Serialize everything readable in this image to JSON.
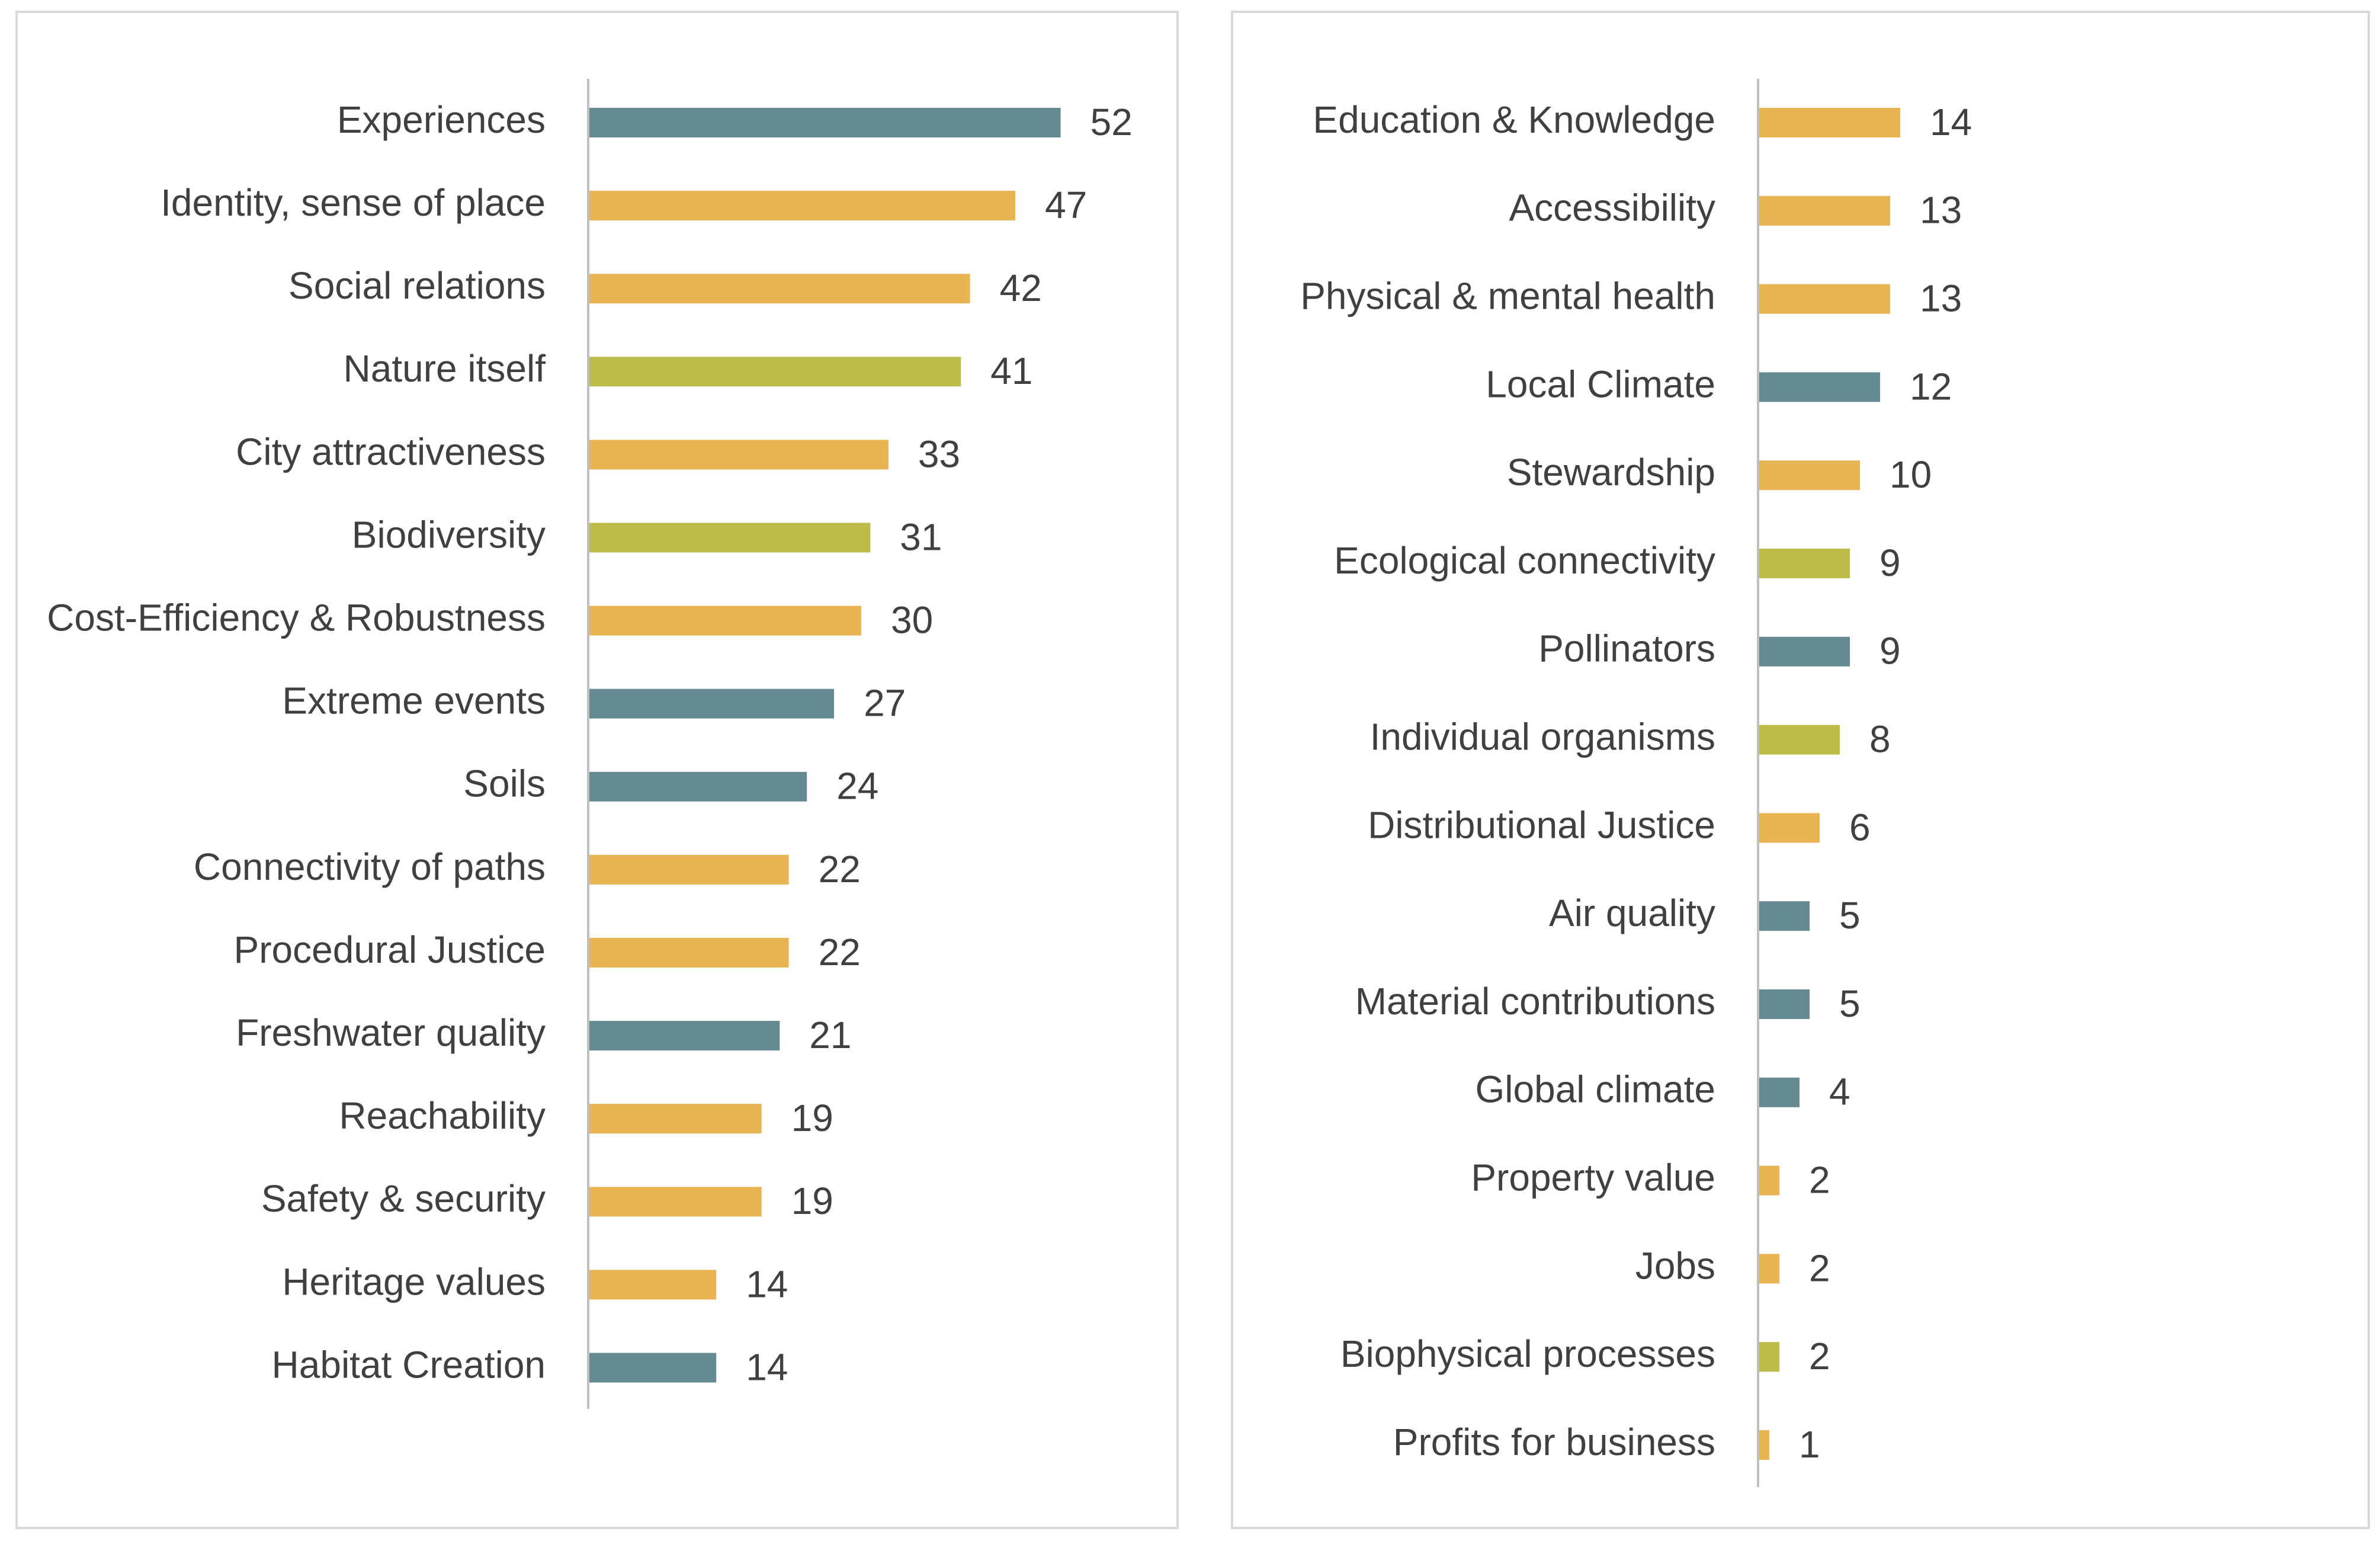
{
  "colors": {
    "teal": "#668a92",
    "orange": "#e8b454",
    "green": "#bcbc4a"
  },
  "chart_data": [
    {
      "type": "bar",
      "orientation": "horizontal",
      "title": "",
      "xlabel": "",
      "ylabel": "",
      "xlim": [
        0,
        60
      ],
      "grid": false,
      "categories": [
        "Experiences",
        "Identity, sense of place",
        "Social relations",
        "Nature itself",
        "City attractiveness",
        "Biodiversity",
        "Cost-Efficiency & Robustness",
        "Extreme events",
        "Soils",
        "Connectivity of paths",
        "Procedural Justice",
        "Freshwater quality",
        "Reachability",
        "Safety & security",
        "Heritage values",
        "Habitat Creation"
      ],
      "values": [
        52,
        47,
        42,
        41,
        33,
        31,
        30,
        27,
        24,
        22,
        22,
        21,
        19,
        19,
        14,
        14
      ],
      "bar_colors": [
        "teal",
        "orange",
        "orange",
        "green",
        "orange",
        "green",
        "orange",
        "teal",
        "teal",
        "orange",
        "orange",
        "teal",
        "orange",
        "orange",
        "orange",
        "teal"
      ]
    },
    {
      "type": "bar",
      "orientation": "horizontal",
      "title": "",
      "xlabel": "",
      "ylabel": "",
      "xlim": [
        0,
        60
      ],
      "grid": false,
      "categories": [
        "Education & Knowledge",
        "Accessibility",
        "Physical & mental health",
        "Local Climate",
        "Stewardship",
        "Ecological connectivity",
        "Pollinators",
        "Individual organisms",
        "Distributional Justice",
        "Air quality",
        "Material contributions",
        "Global climate",
        "Property value",
        "Jobs",
        "Biophysical processes",
        "Profits for business"
      ],
      "values": [
        14,
        13,
        13,
        12,
        10,
        9,
        9,
        8,
        6,
        5,
        5,
        4,
        2,
        2,
        2,
        1
      ],
      "bar_colors": [
        "orange",
        "orange",
        "orange",
        "teal",
        "orange",
        "green",
        "teal",
        "green",
        "orange",
        "teal",
        "teal",
        "teal",
        "orange",
        "orange",
        "green",
        "orange"
      ]
    }
  ]
}
